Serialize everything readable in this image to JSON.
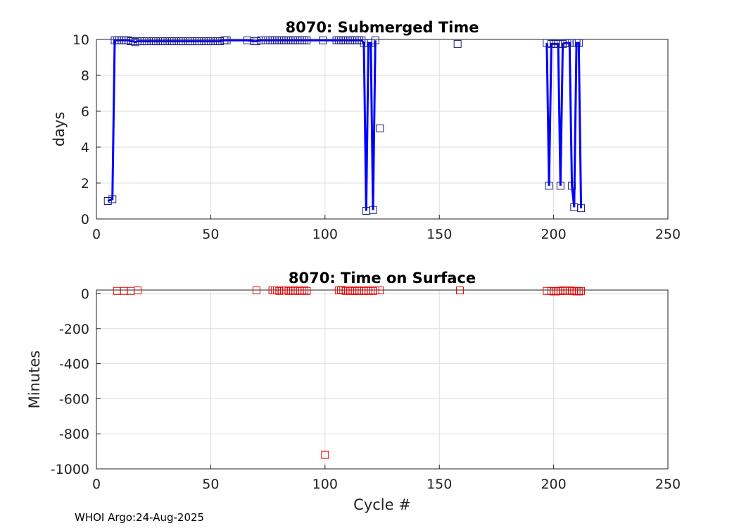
{
  "chart_data": [
    {
      "type": "line",
      "title": "8070: Submerged Time",
      "xlabel": "",
      "ylabel": "days",
      "xlim": [
        0,
        250
      ],
      "ylim": [
        0,
        10
      ],
      "xticks": [
        0,
        50,
        100,
        150,
        200,
        250
      ],
      "yticks": [
        0,
        2,
        4,
        6,
        8,
        10
      ],
      "grid": true,
      "color": "#0000ff",
      "marker": "square",
      "series": [
        {
          "x": [
            5,
            7,
            8,
            9,
            10,
            11,
            12,
            13,
            14,
            15,
            16,
            17,
            18,
            20,
            21,
            22,
            24,
            25,
            26,
            28,
            29,
            30,
            32,
            33,
            34,
            36,
            37,
            38,
            40,
            41,
            42,
            44,
            45,
            46,
            48,
            49,
            50,
            52,
            53,
            54,
            56,
            57,
            66,
            69,
            70,
            72,
            74,
            76,
            77,
            78,
            79,
            80,
            81,
            82,
            83,
            84,
            85,
            86,
            87,
            88,
            89,
            90,
            91,
            92,
            99,
            105,
            106,
            107,
            108,
            109,
            110,
            111,
            112,
            113,
            114,
            115,
            116,
            117,
            118,
            119,
            120,
            121,
            122,
            124,
            158,
            197,
            198,
            199,
            200,
            201,
            202,
            203,
            204,
            205,
            206,
            207,
            208,
            209,
            210,
            211,
            212
          ],
          "y": [
            1.0,
            1.1,
            9.95,
            9.95,
            9.95,
            9.95,
            9.95,
            9.95,
            9.95,
            9.9,
            9.9,
            9.85,
            9.9,
            9.9,
            9.9,
            9.9,
            9.9,
            9.9,
            9.9,
            9.9,
            9.9,
            9.9,
            9.9,
            9.9,
            9.9,
            9.9,
            9.9,
            9.9,
            9.9,
            9.9,
            9.9,
            9.9,
            9.9,
            9.9,
            9.9,
            9.9,
            9.9,
            9.9,
            9.9,
            9.9,
            9.95,
            9.95,
            9.95,
            9.9,
            9.9,
            9.95,
            9.95,
            9.95,
            9.95,
            9.95,
            9.95,
            9.95,
            9.95,
            9.95,
            9.95,
            9.95,
            9.95,
            9.95,
            9.95,
            9.95,
            9.95,
            9.95,
            9.95,
            9.95,
            9.95,
            9.95,
            9.95,
            9.95,
            9.95,
            9.95,
            9.95,
            9.95,
            9.95,
            9.95,
            9.95,
            9.95,
            9.95,
            9.8,
            0.45,
            9.8,
            9.8,
            0.5,
            9.95,
            5.05,
            9.75,
            9.8,
            1.85,
            9.75,
            9.75,
            9.75,
            9.75,
            1.85,
            9.75,
            9.8,
            9.8,
            9.8,
            1.85,
            0.65,
            9.8,
            9.8,
            0.6
          ],
          "connected_until_x": 122
        }
      ]
    },
    {
      "type": "scatter",
      "title": "8070: Time on Surface",
      "xlabel": "Cycle #",
      "ylabel": "Minutes",
      "xlim": [
        0,
        250
      ],
      "ylim": [
        -1000,
        20
      ],
      "xticks": [
        0,
        50,
        100,
        150,
        200,
        250
      ],
      "yticks": [
        -1000,
        -800,
        -600,
        -400,
        -200,
        0
      ],
      "grid": true,
      "color": "#e00000",
      "marker": "square",
      "series": [
        {
          "x": [
            9,
            12,
            15,
            18,
            70,
            77,
            78,
            79,
            80,
            81,
            82,
            83,
            84,
            85,
            86,
            87,
            88,
            89,
            90,
            91,
            92,
            100,
            106,
            107,
            108,
            109,
            110,
            111,
            112,
            113,
            114,
            115,
            116,
            117,
            118,
            119,
            120,
            121,
            122,
            124,
            159,
            197,
            199,
            200,
            201,
            202,
            203,
            204,
            205,
            206,
            207,
            208,
            209,
            210,
            211,
            212
          ],
          "y": [
            15,
            15,
            15,
            18,
            18,
            18,
            18,
            18,
            15,
            18,
            18,
            18,
            15,
            18,
            18,
            15,
            18,
            15,
            18,
            18,
            15,
            -920,
            18,
            20,
            18,
            15,
            18,
            18,
            15,
            15,
            18,
            15,
            18,
            15,
            18,
            15,
            18,
            15,
            18,
            18,
            18,
            15,
            15,
            12,
            12,
            15,
            15,
            18,
            15,
            18,
            18,
            15,
            15,
            12,
            12,
            15
          ]
        }
      ]
    }
  ],
  "footer": "WHOI Argo:24-Aug-2025"
}
